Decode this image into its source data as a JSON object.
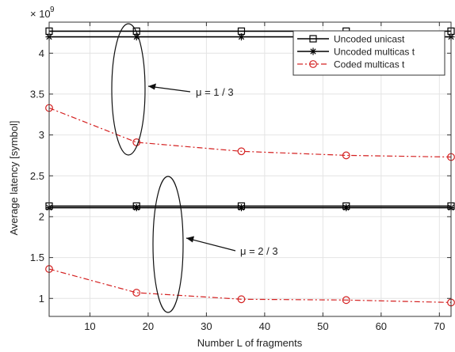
{
  "chart_data": {
    "type": "line",
    "xlabel": "Number L  of fragments",
    "ylabel": "Average latency [symbol]",
    "y_multiplier_label": "× 10",
    "y_multiplier_exponent": "9",
    "xlim": [
      3,
      72
    ],
    "ylim": [
      0.78,
      4.38
    ],
    "xticks": [
      10,
      20,
      30,
      40,
      50,
      60,
      70
    ],
    "yticks": [
      1,
      1.5,
      2,
      2.5,
      3,
      3.5,
      4
    ],
    "ytick_labels": [
      "1",
      "1.5",
      "2",
      "2.5",
      "3",
      "3.5",
      "4"
    ],
    "x": [
      3,
      18,
      36,
      54,
      72
    ],
    "legend_position": "top-right",
    "series": [
      {
        "name": "Uncoded unicast",
        "group": "mu-1/3",
        "color": "#000000",
        "dash": "solid",
        "marker": "square",
        "values": [
          4.27,
          4.27,
          4.27,
          4.27,
          4.27
        ]
      },
      {
        "name": "Uncoded multicas t",
        "group": "mu-1/3",
        "color": "#000000",
        "dash": "solid",
        "marker": "star",
        "values": [
          4.2,
          4.2,
          4.2,
          4.2,
          4.2
        ]
      },
      {
        "name": "Coded multicas t",
        "group": "mu-1/3",
        "color": "#d42020",
        "dash": "dashdot",
        "marker": "circle",
        "values": [
          3.33,
          2.91,
          2.8,
          2.75,
          2.73
        ]
      },
      {
        "name": "",
        "group": "mu-2/3",
        "color": "#000000",
        "dash": "solid",
        "marker": "square",
        "values": [
          2.13,
          2.13,
          2.13,
          2.13,
          2.13
        ]
      },
      {
        "name": "",
        "group": "mu-2/3",
        "color": "#000000",
        "dash": "solid",
        "marker": "star",
        "values": [
          2.11,
          2.11,
          2.11,
          2.11,
          2.11
        ]
      },
      {
        "name": "",
        "group": "mu-2/3",
        "color": "#d42020",
        "dash": "dashdot",
        "marker": "circle",
        "values": [
          1.36,
          1.07,
          0.99,
          0.98,
          0.95
        ]
      }
    ],
    "annotations": [
      {
        "text": "μ = 1 / 3"
      },
      {
        "text": "μ = 2 / 3"
      }
    ]
  }
}
